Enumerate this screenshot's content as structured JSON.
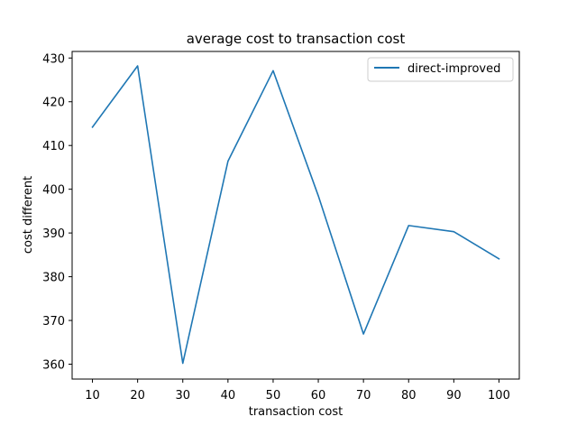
{
  "chart_data": {
    "type": "line",
    "title": "average cost to transaction cost",
    "xlabel": "transaction cost",
    "ylabel": "cost different",
    "x": [
      10,
      20,
      30,
      40,
      50,
      60,
      70,
      80,
      90,
      100
    ],
    "xticks": [
      10,
      20,
      30,
      40,
      50,
      60,
      70,
      80,
      90,
      100
    ],
    "yticks": [
      360,
      370,
      380,
      390,
      400,
      410,
      420,
      430
    ],
    "xlim": [
      5.5,
      104.5
    ],
    "ylim": [
      356.6,
      431.5
    ],
    "grid": false,
    "legend_position": "top-right",
    "series": [
      {
        "name": "direct-improved",
        "color": "#1f77b4",
        "values": [
          414.2,
          428.2,
          360.2,
          406.4,
          427.1,
          398.5,
          366.9,
          391.7,
          390.3,
          384.1
        ]
      }
    ]
  }
}
